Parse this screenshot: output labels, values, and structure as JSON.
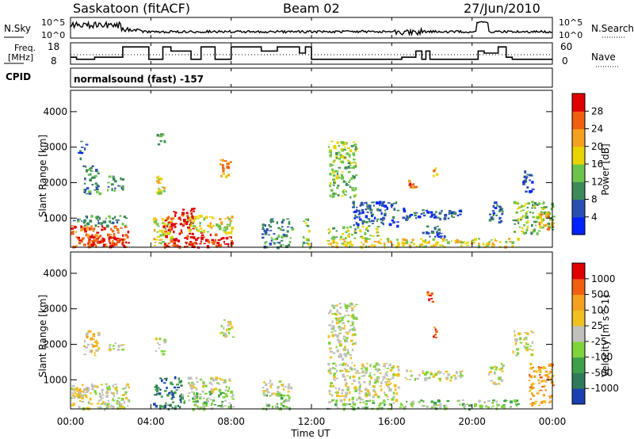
{
  "header": {
    "radar": "Saskatoon (fitACF)",
    "beam": "Beam 02",
    "date": "27/Jun/2010",
    "program": "normalsound (fast) -157"
  },
  "left_labels": {
    "nsky": "N.Sky",
    "freq_line1": "Freq.",
    "freq_line2": "[MHz]",
    "cpid": "CPID"
  },
  "right_labels": {
    "nsearch": "N.Search",
    "nave": "Nave"
  },
  "ticks": {
    "nsky_top": "10^5",
    "nsky_bot": "10^0",
    "freq_top": "18",
    "freq_bot": "8",
    "nave_top": "60",
    "nave_bot": "0"
  },
  "axes": {
    "ylabel": "Slant Range [km]",
    "xlabel": "Time UT",
    "y_ticks": [
      "1000",
      "2000",
      "3000",
      "4000"
    ],
    "x_ticks": [
      "00:00",
      "04:00",
      "08:00",
      "12:00",
      "16:00",
      "20:00",
      "00:00"
    ]
  },
  "colorbars": {
    "power": {
      "label": "Power [dB]",
      "ticks": [
        "4",
        "8",
        "12",
        "16",
        "20",
        "24",
        "28"
      ],
      "colors": [
        "#0022ff",
        "#2a4fb0",
        "#3d8a5a",
        "#6dc44a",
        "#e8d400",
        "#f5a020",
        "#f06010",
        "#e00000"
      ]
    },
    "velocity": {
      "label": "Velocity [m s^-1]",
      "ticks": [
        "1000",
        "500",
        "100",
        "25",
        "-25",
        "-100",
        "-500",
        "-1000"
      ],
      "colors": [
        "#1b3fb0",
        "#2f7a5a",
        "#3ea04a",
        "#7fd33b",
        "#c0c0bc",
        "#f0c020",
        "#f5a020",
        "#f06010",
        "#e00000"
      ]
    }
  },
  "chart_data": {
    "type": "heatmap",
    "x_unit": "hours UT",
    "y_unit": "km",
    "xlim": [
      0,
      24
    ],
    "ylim": [
      180,
      4600
    ],
    "freq_mhz": [
      {
        "t0": 0,
        "t1": 0.3,
        "v": 11
      },
      {
        "t0": 0.3,
        "t1": 1.2,
        "v": 10
      },
      {
        "t0": 1.2,
        "t1": 2.6,
        "v": 11
      },
      {
        "t0": 2.6,
        "t1": 2.8,
        "v": 16
      },
      {
        "t0": 2.8,
        "t1": 3.9,
        "v": 16
      },
      {
        "t0": 3.9,
        "t1": 4.6,
        "v": 10
      },
      {
        "t0": 4.6,
        "t1": 5.0,
        "v": 16
      },
      {
        "t0": 5.0,
        "t1": 6.0,
        "v": 14
      },
      {
        "t0": 6.0,
        "t1": 6.5,
        "v": 10
      },
      {
        "t0": 6.5,
        "t1": 7.2,
        "v": 16
      },
      {
        "t0": 7.2,
        "t1": 8.0,
        "v": 10
      },
      {
        "t0": 8.0,
        "t1": 9.5,
        "v": 16
      },
      {
        "t0": 9.5,
        "t1": 10.3,
        "v": 14
      },
      {
        "t0": 10.3,
        "t1": 11.4,
        "v": 16
      },
      {
        "t0": 11.4,
        "t1": 11.7,
        "v": 13
      },
      {
        "t0": 11.7,
        "t1": 12.0,
        "v": 16
      },
      {
        "t0": 12.0,
        "t1": 16.5,
        "v": 10
      },
      {
        "t0": 16.5,
        "t1": 17.2,
        "v": 11
      },
      {
        "t0": 17.2,
        "t1": 17.5,
        "v": 14
      },
      {
        "t0": 17.5,
        "t1": 17.7,
        "v": 10
      },
      {
        "t0": 17.7,
        "t1": 17.9,
        "v": 14
      },
      {
        "t0": 17.9,
        "t1": 20.3,
        "v": 10
      },
      {
        "t0": 20.3,
        "t1": 20.6,
        "v": 14
      },
      {
        "t0": 20.6,
        "t1": 21.3,
        "v": 13
      },
      {
        "t0": 21.3,
        "t1": 21.7,
        "v": 16
      },
      {
        "t0": 21.7,
        "t1": 22.0,
        "v": 11
      },
      {
        "t0": 22.0,
        "t1": 24,
        "v": 10
      }
    ],
    "power_blobs": [
      {
        "t0": 0.0,
        "t1": 2.9,
        "r0": 200,
        "r1": 800,
        "lvl": 6
      },
      {
        "t0": 0.8,
        "t1": 2.7,
        "r0": 200,
        "r1": 500,
        "lvl": 7
      },
      {
        "t0": 0.1,
        "t1": 2.8,
        "r0": 800,
        "r1": 1100,
        "lvl": 2
      },
      {
        "t0": 0.6,
        "t1": 1.4,
        "r0": 1700,
        "r1": 2500,
        "lvl": 2
      },
      {
        "t0": 0.3,
        "t1": 0.8,
        "r0": 2700,
        "r1": 3200,
        "lvl": 1
      },
      {
        "t0": 1.8,
        "t1": 2.6,
        "r0": 1800,
        "r1": 2200,
        "lvl": 2
      },
      {
        "t0": 4.1,
        "t1": 5.1,
        "r0": 200,
        "r1": 1100,
        "lvl": 4
      },
      {
        "t0": 4.6,
        "t1": 6.1,
        "r0": 200,
        "r1": 1300,
        "lvl": 7
      },
      {
        "t0": 5.9,
        "t1": 8.1,
        "r0": 200,
        "r1": 600,
        "lvl": 7
      },
      {
        "t0": 5.8,
        "t1": 8.0,
        "r0": 600,
        "r1": 1100,
        "lvl": 4
      },
      {
        "t0": 4.2,
        "t1": 4.7,
        "r0": 1700,
        "r1": 2200,
        "lvl": 4
      },
      {
        "t0": 4.2,
        "t1": 4.7,
        "r0": 3100,
        "r1": 3400,
        "lvl": 2
      },
      {
        "t0": 7.4,
        "t1": 8.1,
        "r0": 2200,
        "r1": 2700,
        "lvl": 5
      },
      {
        "t0": 9.5,
        "t1": 11.0,
        "r0": 200,
        "r1": 1000,
        "lvl": 2
      },
      {
        "t0": 11.5,
        "t1": 11.9,
        "r0": 200,
        "r1": 1000,
        "lvl": 3
      },
      {
        "t0": 12.7,
        "t1": 22.3,
        "r0": 200,
        "r1": 450,
        "lvl": 4
      },
      {
        "t0": 12.7,
        "t1": 15.3,
        "r0": 450,
        "r1": 800,
        "lvl": 3
      },
      {
        "t0": 12.8,
        "t1": 14.2,
        "r0": 1600,
        "r1": 3200,
        "lvl": 3
      },
      {
        "t0": 14.0,
        "t1": 16.3,
        "r0": 800,
        "r1": 1500,
        "lvl": 1
      },
      {
        "t0": 16.5,
        "t1": 19.5,
        "r0": 1000,
        "r1": 1300,
        "lvl": 1
      },
      {
        "t0": 17.5,
        "t1": 18.6,
        "r0": 500,
        "r1": 800,
        "lvl": 1
      },
      {
        "t0": 18.0,
        "t1": 18.2,
        "r0": 2200,
        "r1": 2500,
        "lvl": 5
      },
      {
        "t0": 16.8,
        "t1": 17.2,
        "r0": 1900,
        "r1": 2200,
        "lvl": 6
      },
      {
        "t0": 20.8,
        "t1": 21.5,
        "r0": 900,
        "r1": 1500,
        "lvl": 1
      },
      {
        "t0": 22.0,
        "t1": 24,
        "r0": 600,
        "r1": 1500,
        "lvl": 3
      },
      {
        "t0": 23.3,
        "t1": 24,
        "r0": 700,
        "r1": 1200,
        "lvl": 5
      },
      {
        "t0": 22.5,
        "t1": 23.0,
        "r0": 1700,
        "r1": 2400,
        "lvl": 1
      }
    ],
    "velocity_blobs": [
      {
        "t0": 0.0,
        "t1": 2.9,
        "r0": 200,
        "r1": 900,
        "lvl": 4
      },
      {
        "t0": 0.1,
        "t1": 1.0,
        "r0": 400,
        "r1": 800,
        "lvl": 5
      },
      {
        "t0": 0.6,
        "t1": 1.4,
        "r0": 1700,
        "r1": 2400,
        "lvl": 5
      },
      {
        "t0": 1.8,
        "t1": 2.6,
        "r0": 1800,
        "r1": 2100,
        "lvl": 4
      },
      {
        "t0": 4.1,
        "t1": 5.5,
        "r0": 200,
        "r1": 1100,
        "lvl": 1
      },
      {
        "t0": 5.5,
        "t1": 8.1,
        "r0": 200,
        "r1": 700,
        "lvl": 3
      },
      {
        "t0": 5.8,
        "t1": 8.0,
        "r0": 700,
        "r1": 1100,
        "lvl": 4
      },
      {
        "t0": 4.2,
        "t1": 4.7,
        "r0": 1700,
        "r1": 2200,
        "lvl": 4
      },
      {
        "t0": 7.4,
        "t1": 8.1,
        "r0": 2200,
        "r1": 2700,
        "lvl": 4
      },
      {
        "t0": 9.5,
        "t1": 11.0,
        "r0": 200,
        "r1": 600,
        "lvl": 3
      },
      {
        "t0": 9.5,
        "t1": 11.0,
        "r0": 600,
        "r1": 1000,
        "lvl": 4
      },
      {
        "t0": 12.7,
        "t1": 22.3,
        "r0": 200,
        "r1": 450,
        "lvl": 3
      },
      {
        "t0": 12.8,
        "t1": 16.3,
        "r0": 450,
        "r1": 1500,
        "lvl": 4
      },
      {
        "t0": 12.8,
        "t1": 14.2,
        "r0": 1600,
        "r1": 3200,
        "lvl": 4
      },
      {
        "t0": 16.5,
        "t1": 19.5,
        "r0": 1000,
        "r1": 1300,
        "lvl": 4
      },
      {
        "t0": 18.0,
        "t1": 18.2,
        "r0": 2200,
        "r1": 2500,
        "lvl": 7
      },
      {
        "t0": 17.7,
        "t1": 18.0,
        "r0": 3200,
        "r1": 3500,
        "lvl": 7
      },
      {
        "t0": 20.8,
        "t1": 21.5,
        "r0": 900,
        "r1": 1500,
        "lvl": 4
      },
      {
        "t0": 22.8,
        "t1": 24,
        "r0": 300,
        "r1": 1500,
        "lvl": 6
      },
      {
        "t0": 22.0,
        "t1": 23.0,
        "r0": 1700,
        "r1": 2400,
        "lvl": 4
      }
    ]
  }
}
